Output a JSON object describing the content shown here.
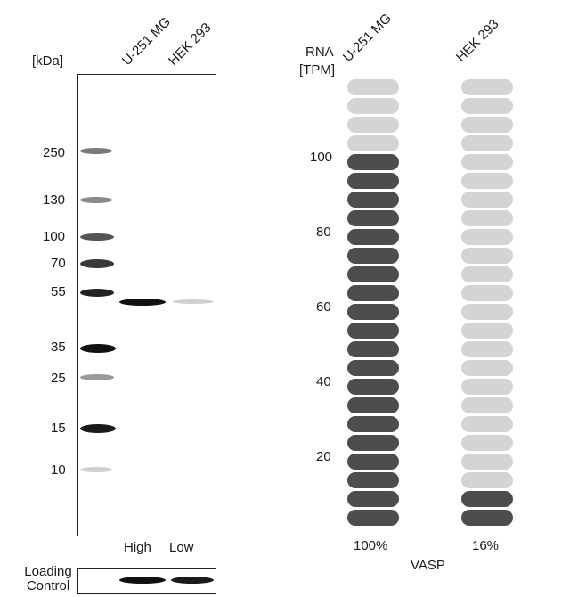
{
  "western_blot": {
    "unit_label": "[kDa]",
    "lanes": [
      "U-251 MG",
      "HEK 293"
    ],
    "markers": [
      "250",
      "130",
      "100",
      "70",
      "55",
      "35",
      "25",
      "15",
      "10"
    ],
    "lane_bottom_labels": [
      "High",
      "Low"
    ],
    "loading_control_label": "Loading Control"
  },
  "rna_panel": {
    "axis_title_line1": "RNA",
    "axis_title_line2": "[TPM]",
    "y_ticks": [
      "100",
      "80",
      "60",
      "40",
      "20"
    ],
    "cell_lines": [
      {
        "name": "U-251 MG",
        "percent_label": "100%",
        "filled_segments": 20,
        "total_segments": 24
      },
      {
        "name": "HEK 293",
        "percent_label": "16%",
        "filled_segments": 2,
        "total_segments": 24
      }
    ],
    "gene": "VASP",
    "colors": {
      "filled": "#4d4d4d",
      "empty": "#d4d4d4"
    }
  }
}
